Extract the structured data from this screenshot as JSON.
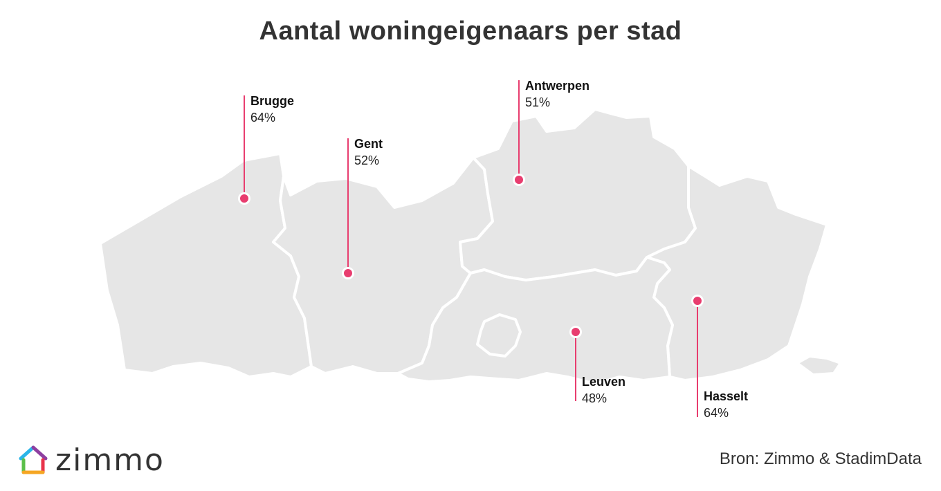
{
  "title": "Aantal woningeigenaars per stad",
  "cities": [
    {
      "name": "Brugge",
      "value": "64%"
    },
    {
      "name": "Gent",
      "value": "52%"
    },
    {
      "name": "Antwerpen",
      "value": "51%"
    },
    {
      "name": "Leuven",
      "value": "48%"
    },
    {
      "name": "Hasselt",
      "value": "64%"
    }
  ],
  "logo": {
    "text": "zimmo",
    "icon": "house-icon"
  },
  "source": "Bron: Zimmo & StadimData",
  "colors": {
    "marker": "#e83d6f",
    "region": "#e6e6e6",
    "text": "#333333"
  }
}
